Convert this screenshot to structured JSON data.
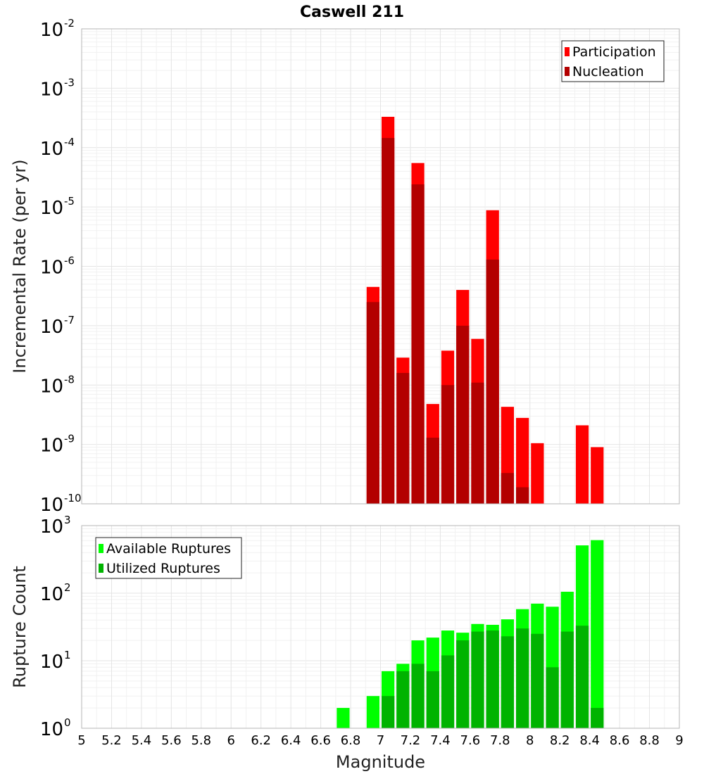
{
  "page_title": "Caswell 211",
  "chart_data": [
    {
      "type": "bar",
      "title": "Caswell 211",
      "ylabel": "Incremental Rate (per yr)",
      "xlabel": "",
      "y_scale": "log",
      "ylim_exponents": [
        -10,
        -2
      ],
      "xlim": [
        5,
        9
      ],
      "grid": true,
      "legend_position": "top-right",
      "bar_width": 0.1,
      "series": [
        {
          "name": "Participation",
          "color": "#ff0000",
          "x": [
            6.95,
            7.05,
            7.15,
            7.25,
            7.35,
            7.45,
            7.55,
            7.65,
            7.75,
            7.85,
            7.95,
            8.05,
            8.35,
            8.45
          ],
          "values": [
            4.5e-07,
            0.00033,
            2.9e-08,
            5.5e-05,
            4.8e-09,
            3.8e-08,
            4e-07,
            6e-08,
            8.8e-06,
            4.3e-09,
            2.8e-09,
            1.05e-09,
            2.1e-09,
            9e-10
          ]
        },
        {
          "name": "Nucleation",
          "color": "#b30000",
          "x": [
            6.95,
            7.05,
            7.15,
            7.25,
            7.35,
            7.45,
            7.55,
            7.65,
            7.75,
            7.85,
            7.95
          ],
          "values": [
            2.5e-07,
            0.000145,
            1.6e-08,
            2.4e-05,
            1.3e-09,
            1e-08,
            1e-07,
            1.1e-08,
            1.3e-06,
            3.3e-10,
            1.9e-10
          ]
        }
      ]
    },
    {
      "type": "bar",
      "title": "",
      "ylabel": "Rupture Count",
      "xlabel": "Magnitude",
      "y_scale": "log",
      "ylim_exponents": [
        0,
        3
      ],
      "xlim": [
        5,
        9
      ],
      "x_ticks": [
        "5",
        "5.2",
        "5.4",
        "5.6",
        "5.8",
        "6",
        "6.2",
        "6.4",
        "6.6",
        "6.8",
        "7",
        "7.2",
        "7.4",
        "7.6",
        "7.8",
        "8",
        "8.2",
        "8.4",
        "8.6",
        "8.8",
        "9"
      ],
      "grid": true,
      "legend_position": "top-left",
      "bar_width": 0.1,
      "series": [
        {
          "name": "Available Ruptures",
          "color": "#00ff00",
          "x": [
            6.75,
            6.85,
            6.95,
            7.05,
            7.15,
            7.25,
            7.35,
            7.45,
            7.55,
            7.65,
            7.75,
            7.85,
            7.95,
            8.05,
            8.15,
            8.25,
            8.35,
            8.45
          ],
          "values": [
            2,
            1,
            3,
            7,
            9,
            20,
            22,
            28,
            26,
            35,
            34,
            41,
            58,
            70,
            63,
            105,
            510,
            610
          ]
        },
        {
          "name": "Utilized Ruptures",
          "color": "#00b300",
          "x": [
            6.95,
            7.05,
            7.15,
            7.25,
            7.35,
            7.45,
            7.55,
            7.65,
            7.75,
            7.85,
            7.95,
            8.05,
            8.15,
            8.25,
            8.35,
            8.45
          ],
          "values": [
            1,
            3,
            7,
            9,
            7,
            12,
            20,
            27,
            28,
            23,
            30,
            25,
            8,
            27,
            33,
            2
          ]
        }
      ]
    }
  ]
}
